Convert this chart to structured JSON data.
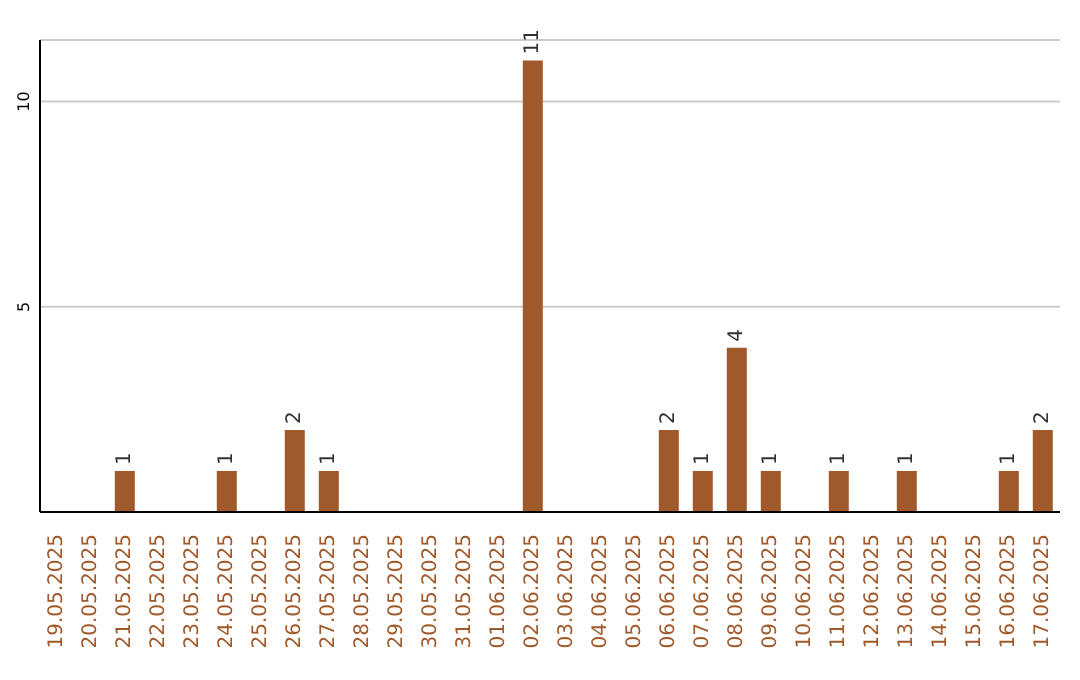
{
  "chart_data": {
    "type": "bar",
    "categories": [
      "19.05.2025",
      "20.05.2025",
      "21.05.2025",
      "22.05.2025",
      "23.05.2025",
      "24.05.2025",
      "25.05.2025",
      "26.05.2025",
      "27.05.2025",
      "28.05.2025",
      "29.05.2025",
      "30.05.2025",
      "31.05.2025",
      "01.06.2025",
      "02.06.2025",
      "03.06.2025",
      "04.06.2025",
      "05.06.2025",
      "06.06.2025",
      "07.06.2025",
      "08.06.2025",
      "09.06.2025",
      "10.06.2025",
      "11.06.2025",
      "12.06.2025",
      "13.06.2025",
      "14.06.2025",
      "15.06.2025",
      "16.06.2025",
      "17.06.2025"
    ],
    "values": [
      0,
      0,
      1,
      0,
      0,
      1,
      0,
      2,
      1,
      0,
      0,
      0,
      0,
      0,
      11,
      0,
      0,
      0,
      2,
      1,
      4,
      1,
      0,
      1,
      0,
      1,
      0,
      0,
      1,
      2
    ],
    "value_labels": [
      null,
      null,
      "1",
      null,
      null,
      "1",
      null,
      "2",
      "1",
      null,
      null,
      null,
      null,
      null,
      "11",
      null,
      null,
      null,
      "2",
      "1",
      "4",
      "1",
      null,
      "1",
      null,
      "1",
      null,
      null,
      "1",
      "2"
    ],
    "color": "#a0592a",
    "ylim": [
      0,
      11.5
    ],
    "yticks": [
      5,
      10
    ],
    "grid": "y",
    "legend": false
  }
}
